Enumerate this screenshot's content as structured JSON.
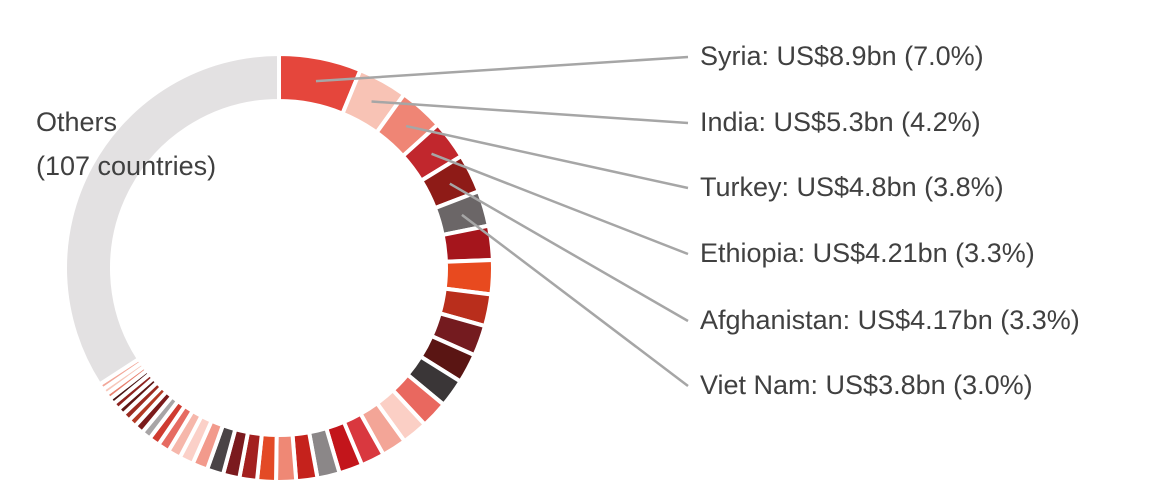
{
  "chart_data": {
    "type": "donut",
    "title": "",
    "others": {
      "line1": "Others",
      "line2": "(107 countries)",
      "share": 38.5,
      "color": "#e3e1e2"
    },
    "labelled": [
      {
        "label": "Syria: US$8.9bn (7.0%)",
        "name": "Syria",
        "value_usd_bn": 8.9,
        "share": 7.0,
        "color": "#e5463c"
      },
      {
        "label": "India: US$5.3bn (4.2%)",
        "name": "India",
        "value_usd_bn": 5.3,
        "share": 4.2,
        "color": "#f8c3b5"
      },
      {
        "label": "Turkey: US$4.8bn (3.8%)",
        "name": "Turkey",
        "value_usd_bn": 4.8,
        "share": 3.8,
        "color": "#ef8575"
      },
      {
        "label": "Ethiopia: US$4.21bn (3.3%)",
        "name": "Ethiopia",
        "value_usd_bn": 4.21,
        "share": 3.3,
        "color": "#c1272d"
      },
      {
        "label": "Afghanistan: US$4.17bn (3.3%)",
        "name": "Afghanistan",
        "value_usd_bn": 4.17,
        "share": 3.3,
        "color": "#8e1b17"
      },
      {
        "label": "Viet Nam: US$3.8bn (3.0%)",
        "name": "Viet Nam",
        "value_usd_bn": 3.8,
        "share": 3.0,
        "color": "#6b6667"
      }
    ],
    "unlabelled": [
      {
        "share": 2.9,
        "color": "#a5151c"
      },
      {
        "share": 2.9,
        "color": "#e84a1f"
      },
      {
        "share": 2.7,
        "color": "#b92e1c"
      },
      {
        "share": 2.6,
        "color": "#741b1f"
      },
      {
        "share": 2.5,
        "color": "#5a1513"
      },
      {
        "share": 2.4,
        "color": "#3a3637"
      },
      {
        "share": 2.3,
        "color": "#e9685f"
      },
      {
        "share": 2.2,
        "color": "#fbcfc5"
      },
      {
        "share": 2.1,
        "color": "#f3a597"
      },
      {
        "share": 2.0,
        "color": "#d9383f"
      },
      {
        "share": 2.0,
        "color": "#c3151b"
      },
      {
        "share": 1.9,
        "color": "#8b8788"
      },
      {
        "share": 1.8,
        "color": "#c5221c"
      },
      {
        "share": 1.7,
        "color": "#ef8875"
      },
      {
        "share": 1.6,
        "color": "#e34a26"
      },
      {
        "share": 1.5,
        "color": "#a3201f"
      },
      {
        "share": 1.4,
        "color": "#7b1a1e"
      },
      {
        "share": 1.4,
        "color": "#4a4446"
      },
      {
        "share": 1.3,
        "color": "#f29a8c"
      },
      {
        "share": 1.2,
        "color": "#fbd0c8"
      },
      {
        "share": 1.1,
        "color": "#f6b7ab"
      },
      {
        "share": 1.0,
        "color": "#e66b62"
      },
      {
        "share": 0.9,
        "color": "#cf3b30"
      },
      {
        "share": 0.8,
        "color": "#a8a5a6"
      },
      {
        "share": 0.8,
        "color": "#7a1a1a"
      },
      {
        "share": 0.7,
        "color": "#b33a24"
      },
      {
        "share": 0.7,
        "color": "#9b2b20"
      },
      {
        "share": 0.6,
        "color": "#5e1614"
      },
      {
        "share": 0.6,
        "color": "#8e2420"
      },
      {
        "share": 0.5,
        "color": "#491313"
      },
      {
        "share": 0.5,
        "color": "#e8806f"
      },
      {
        "share": 0.5,
        "color": "#f7c7ba"
      },
      {
        "share": 0.5,
        "color": "#f2a799"
      }
    ],
    "leader_line_color": "#a6a6a6",
    "separator_color": "#ffffff"
  }
}
